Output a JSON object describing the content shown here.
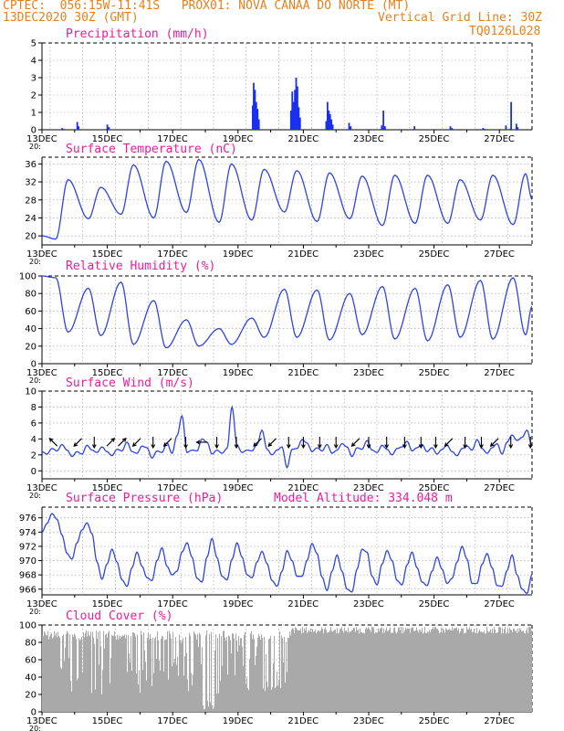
{
  "header": {
    "org": "CPTEC:",
    "coords": "056:15W-11:41S",
    "station": "PROX01: NOVA CANAA DO NORTE (MT)",
    "run": "13DEC2020 30Z (GMT)",
    "grid_note": "Vertical Grid Line: 30Z",
    "code": "TQ0126L028"
  },
  "model_altitude": "Model Altitude: 334.048 m",
  "x_axis": {
    "ticks": [
      "13DEC",
      "15DEC",
      "17DEC",
      "19DEC",
      "21DEC",
      "23DEC",
      "25DEC",
      "27DEC"
    ],
    "partial_label": "20:"
  },
  "chart_data": [
    {
      "type": "bar",
      "title": "Precipitation (mm/h)",
      "ylim": [
        0,
        5
      ],
      "yticks": [
        0,
        1,
        2,
        3,
        4,
        5
      ],
      "color": "#1a2ff0",
      "x_unit": "days since 13DEC 00Z",
      "points": [
        [
          0.62,
          0.1
        ],
        [
          0.66,
          0.05
        ],
        [
          1.08,
          0.45
        ],
        [
          1.12,
          0.2
        ],
        [
          2.0,
          0.3
        ],
        [
          2.05,
          0.15
        ],
        [
          6.45,
          1.4
        ],
        [
          6.48,
          2.7
        ],
        [
          6.52,
          2.3
        ],
        [
          6.56,
          1.6
        ],
        [
          6.6,
          1.2
        ],
        [
          6.64,
          0.6
        ],
        [
          7.62,
          1.1
        ],
        [
          7.66,
          2.2
        ],
        [
          7.7,
          1.6
        ],
        [
          7.74,
          2.3
        ],
        [
          7.78,
          3.0
        ],
        [
          7.82,
          2.5
        ],
        [
          7.86,
          1.3
        ],
        [
          7.9,
          0.7
        ],
        [
          8.7,
          0.5
        ],
        [
          8.74,
          1.6
        ],
        [
          8.78,
          1.1
        ],
        [
          8.82,
          0.9
        ],
        [
          8.86,
          0.6
        ],
        [
          8.9,
          0.3
        ],
        [
          9.4,
          0.4
        ],
        [
          9.45,
          0.2
        ],
        [
          10.4,
          0.25
        ],
        [
          10.45,
          1.1
        ],
        [
          10.5,
          0.2
        ],
        [
          11.4,
          0.2
        ],
        [
          12.5,
          0.2
        ],
        [
          12.55,
          0.1
        ],
        [
          13.5,
          0.1
        ],
        [
          13.55,
          0.05
        ],
        [
          14.2,
          0.25
        ],
        [
          14.32,
          0.05
        ],
        [
          14.36,
          1.6
        ],
        [
          14.52,
          0.35
        ],
        [
          14.56,
          0.15
        ]
      ]
    },
    {
      "type": "line",
      "title": "Surface Temperature (nC)",
      "ylim": [
        18,
        37.5
      ],
      "yticks": [
        20,
        24,
        28,
        32,
        36
      ],
      "color": "#2d44e6",
      "daily_max": [
        32.5,
        30.8,
        35.8,
        36.6,
        37.0,
        36.0,
        34.8,
        34.5,
        34.0,
        33.3,
        33.5,
        33.5,
        32.5,
        33.5,
        33.8
      ],
      "daily_min": [
        19.3,
        23.8,
        24.8,
        24.0,
        25.2,
        23.0,
        23.5,
        25.3,
        23.2,
        23.8,
        22.3,
        22.8,
        22.8,
        23.5,
        22.5
      ],
      "start": 20.0
    },
    {
      "type": "line",
      "title": "Relative Humidity (%)",
      "ylim": [
        0,
        100
      ],
      "yticks": [
        0,
        20,
        40,
        60,
        80,
        100
      ],
      "color": "#2d44e6",
      "daily_min": [
        36,
        32,
        22,
        18,
        20,
        22,
        30,
        30,
        27,
        33,
        28,
        26,
        30,
        28,
        33
      ],
      "daily_max": [
        98,
        86,
        93,
        72,
        50,
        40,
        52,
        85,
        84,
        80,
        88,
        86,
        90,
        95,
        98
      ],
      "start": 100
    },
    {
      "type": "line",
      "title": "Surface Wind (m/s)",
      "ylim": [
        -1,
        10
      ],
      "yticks": [
        0,
        2,
        4,
        6,
        8,
        10
      ],
      "color": "#2d44e6",
      "values": [
        2.4,
        2.1,
        2.8,
        2.5,
        3.3,
        2.6,
        1.8,
        2.4,
        2.1,
        3.2,
        2.6,
        2.3,
        3.0,
        2.4,
        1.9,
        2.7,
        2.5,
        3.6,
        2.4,
        2.2,
        3.1,
        2.9,
        1.6,
        2.5,
        2.3,
        3.5,
        2.2,
        4.4,
        6.9,
        2.3,
        2.6,
        2.5,
        4.0,
        3.6,
        2.1,
        2.6,
        2.2,
        2.8,
        8.0,
        3.2,
        2.3,
        2.6,
        2.5,
        3.3,
        5.1,
        2.7,
        2.0,
        2.6,
        3.0,
        0.4,
        2.7,
        2.8,
        3.9,
        3.5,
        2.4,
        2.9,
        2.5,
        3.3,
        2.2,
        2.6,
        3.4,
        3.0,
        1.8,
        2.9,
        2.7,
        3.8,
        2.6,
        2.3,
        3.2,
        2.7,
        2.0,
        2.8,
        3.0,
        3.7,
        2.5,
        2.9,
        3.3,
        2.4,
        2.9,
        2.1,
        2.7,
        3.2,
        2.4,
        1.9,
        2.8,
        3.1,
        2.6,
        3.9,
        2.8,
        2.2,
        2.9,
        3.4,
        2.1,
        3.6,
        4.5,
        3.8,
        4.2,
        5.1,
        3.1
      ],
      "arrows": [
        [
          0.35,
          "nw"
        ],
        [
          1.1,
          "sw"
        ],
        [
          1.6,
          "s"
        ],
        [
          2.1,
          "ne"
        ],
        [
          2.45,
          "ne"
        ],
        [
          2.9,
          "sw"
        ],
        [
          3.4,
          "s"
        ],
        [
          3.85,
          "sw"
        ],
        [
          4.4,
          "s"
        ],
        [
          4.9,
          "w"
        ],
        [
          5.35,
          "s"
        ],
        [
          5.95,
          "s"
        ],
        [
          6.6,
          "sw"
        ],
        [
          7.05,
          "sw"
        ],
        [
          7.55,
          "s"
        ],
        [
          8.0,
          "s"
        ],
        [
          8.5,
          "s"
        ],
        [
          9.0,
          "s"
        ],
        [
          9.6,
          "sw"
        ],
        [
          10.0,
          "s"
        ],
        [
          10.55,
          "s"
        ],
        [
          11.1,
          "s"
        ],
        [
          11.6,
          "s"
        ],
        [
          12.05,
          "s"
        ],
        [
          12.45,
          "sw"
        ],
        [
          12.95,
          "s"
        ],
        [
          13.45,
          "s"
        ],
        [
          13.85,
          "sw"
        ],
        [
          14.35,
          "s"
        ],
        [
          14.95,
          "s"
        ]
      ]
    },
    {
      "type": "line",
      "title": "Surface Pressure (hPa)",
      "ylim": [
        965.2,
        977.5
      ],
      "yticks": [
        966,
        968,
        970,
        972,
        974,
        976
      ],
      "color": "#2d44e6",
      "values": [
        974.0,
        975.2,
        976.6,
        975.8,
        973.6,
        971.0,
        970.2,
        972.5,
        974.3,
        975.3,
        973.8,
        969.8,
        967.4,
        969.5,
        971.6,
        969.8,
        967.3,
        966.4,
        969.0,
        971.2,
        969.2,
        967.6,
        967.2,
        970.0,
        971.8,
        969.2,
        968.0,
        968.5,
        971.2,
        972.5,
        970.5,
        967.5,
        967.0,
        970.5,
        973.1,
        970.4,
        967.8,
        967.3,
        970.2,
        972.5,
        970.5,
        968.0,
        967.6,
        969.8,
        971.3,
        969.6,
        967.2,
        966.4,
        968.5,
        971.4,
        970.0,
        967.8,
        967.8,
        970.0,
        972.4,
        971.0,
        967.7,
        965.8,
        968.5,
        970.8,
        968.5,
        966.0,
        965.6,
        968.8,
        971.6,
        971.2,
        967.8,
        966.6,
        969.5,
        971.4,
        970.0,
        967.2,
        966.6,
        969.4,
        971.2,
        969.0,
        967.0,
        966.5,
        968.5,
        970.5,
        968.8,
        966.8,
        967.5,
        969.8,
        972.0,
        970.2,
        966.8,
        966.8,
        969.5,
        971.0,
        969.0,
        966.5,
        966.4,
        968.6,
        970.8,
        968.0,
        966.0,
        965.4,
        968.1
      ]
    },
    {
      "type": "area",
      "title": "Cloud Cover (%)",
      "ylim": [
        0,
        100
      ],
      "yticks": [
        0,
        20,
        40,
        60,
        80,
        100
      ],
      "color": "#a9a9a9",
      "baseline": 94
    }
  ]
}
